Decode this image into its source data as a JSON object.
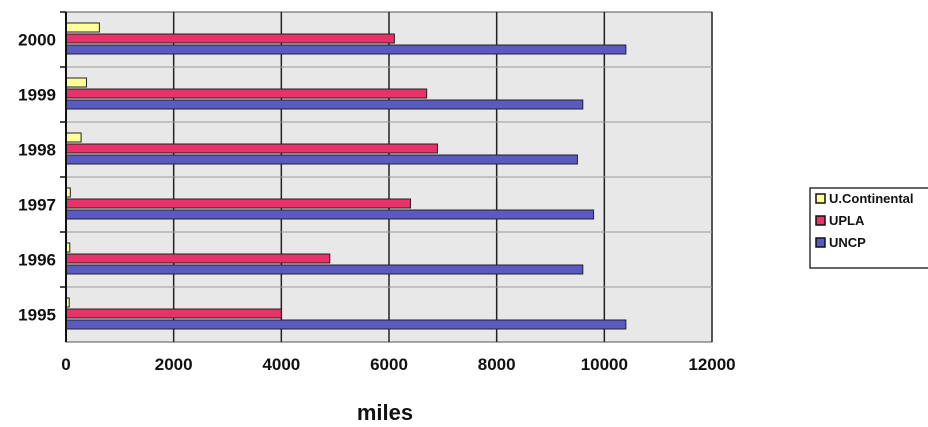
{
  "chart_data": {
    "type": "bar",
    "orientation": "horizontal",
    "categories": [
      "1995",
      "1996",
      "1997",
      "1998",
      "1999",
      "2000"
    ],
    "series": [
      {
        "name": "U.Continental",
        "values": [
          60,
          70,
          80,
          280,
          380,
          620
        ],
        "color": "#ffff99"
      },
      {
        "name": "UPLA",
        "values": [
          4000,
          4900,
          6400,
          6900,
          6700,
          6100
        ],
        "color": "#e8336a"
      },
      {
        "name": "UNCP",
        "values": [
          10400,
          9600,
          9800,
          9500,
          9600,
          10400
        ],
        "color": "#5a5ac2"
      }
    ],
    "xlabel": "miles",
    "ylabel": "",
    "xlim": [
      0,
      12000
    ],
    "x_ticks": [
      0,
      2000,
      4000,
      6000,
      8000,
      10000,
      12000
    ],
    "grid": true,
    "legend_position": "right",
    "plot_background": "#e8e8e8"
  }
}
